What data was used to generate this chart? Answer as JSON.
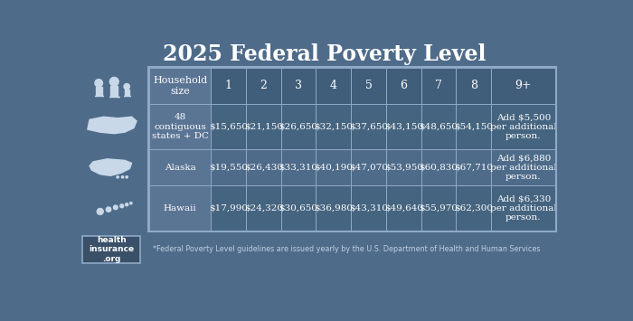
{
  "title": "2025 Federal Poverty Level",
  "bg_color": "#4e6b8a",
  "header_row_color": "#405d7a",
  "data_row_dark": "#456480",
  "data_row_light": "#4e6b8a",
  "label_col_color": "#5a7494",
  "border_color": "#8eaac8",
  "text_color": "#ffffff",
  "icon_color": "#c8d8e8",
  "header_row": [
    "Household\nsize",
    "1",
    "2",
    "3",
    "4",
    "5",
    "6",
    "7",
    "8",
    "9+"
  ],
  "rows": [
    {
      "label": "48\ncontiguous\nstates + DC",
      "values": [
        "$15,650",
        "$21,150",
        "$26,650",
        "$32,150",
        "$37,650",
        "$43,150",
        "$48,650",
        "$54,150",
        "Add $5,500\nper additional\nperson."
      ]
    },
    {
      "label": "Alaska",
      "values": [
        "$19,550",
        "$26,430",
        "$33,310",
        "$40,190",
        "$47,070",
        "$53,950",
        "$60,830",
        "$67,710",
        "Add $6,880\nper additional\nperson."
      ]
    },
    {
      "label": "Hawaii",
      "values": [
        "$17,990",
        "$24,320",
        "$30,650",
        "$36,980",
        "$43,310",
        "$49,640",
        "$55,970",
        "$62,300",
        "Add $6,330\nper additional\nperson."
      ]
    }
  ],
  "footnote": "*Federal Poverty Level guidelines are issued yearly by the U.S. Department of Health and Human Services",
  "logo_text": "health\ninsurance\n.org"
}
